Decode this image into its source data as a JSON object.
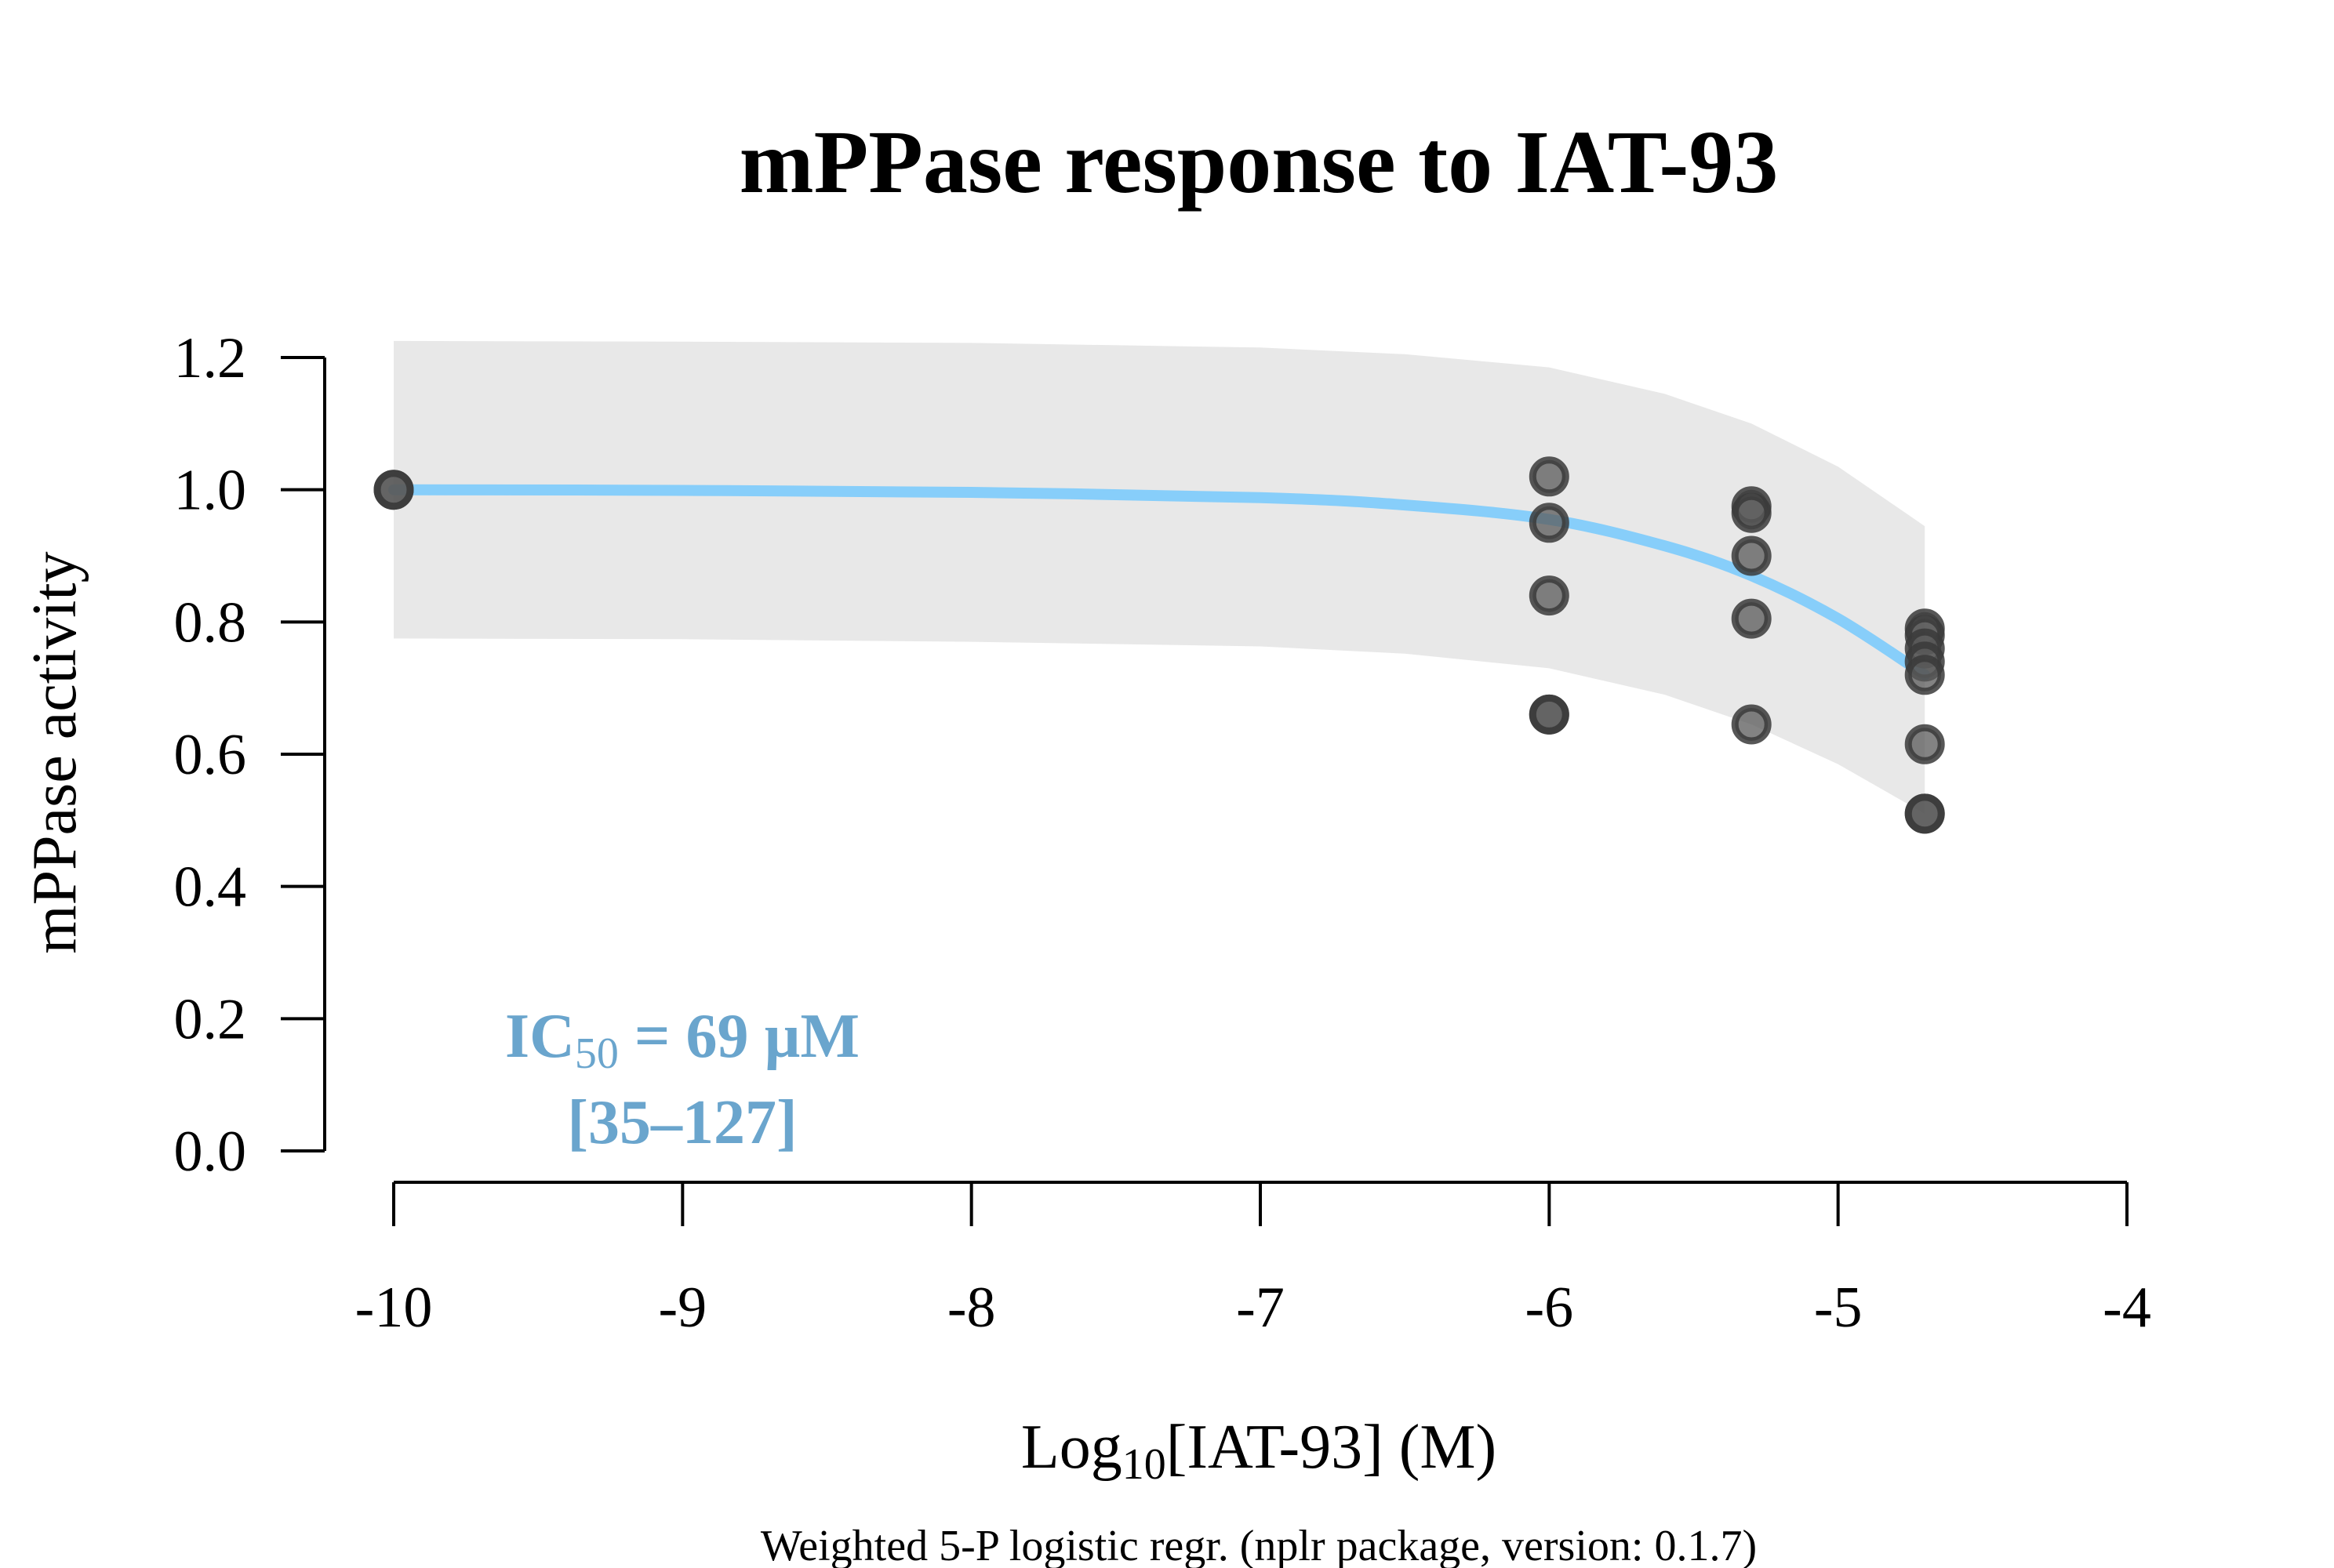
{
  "chart_data": {
    "type": "scatter",
    "title": "mPPase response to IAT-93",
    "xlabel": {
      "prefix": "Log",
      "subscript": "10",
      "suffix": "[IAT-93] (M)"
    },
    "ylabel": "mPPase activity",
    "footnote": "Weighted 5-P logistic regr. (nplr package, version: 0.1.7)",
    "xlim": [
      -10,
      -4
    ],
    "ylim": [
      0,
      1.2
    ],
    "x_ticks": [
      -10,
      -9,
      -8,
      -7,
      -6,
      -5,
      -4
    ],
    "x_tick_labels": [
      "-10",
      "-9",
      "-8",
      "-7",
      "-6",
      "-5",
      "-4"
    ],
    "y_ticks": [
      0,
      0.2,
      0.4,
      0.6,
      0.8,
      1.0,
      1.2
    ],
    "y_tick_labels": [
      "0.0",
      "0.2",
      "0.4",
      "0.6",
      "0.8",
      "1.0",
      "1.2"
    ],
    "grid": false,
    "legend": "none",
    "points": [
      {
        "x": -10,
        "y": 1.0
      },
      {
        "x": -10,
        "y": 1.0
      },
      {
        "x": -6,
        "y": 1.02
      },
      {
        "x": -6,
        "y": 0.95
      },
      {
        "x": -6,
        "y": 0.84
      },
      {
        "x": -6,
        "y": 0.66
      },
      {
        "x": -6,
        "y": 0.66
      },
      {
        "x": -5.3,
        "y": 0.975
      },
      {
        "x": -5.3,
        "y": 0.965
      },
      {
        "x": -5.3,
        "y": 0.9
      },
      {
        "x": -5.3,
        "y": 0.805
      },
      {
        "x": -5.3,
        "y": 0.645
      },
      {
        "x": -4.7,
        "y": 0.79
      },
      {
        "x": -4.7,
        "y": 0.78
      },
      {
        "x": -4.7,
        "y": 0.76
      },
      {
        "x": -4.7,
        "y": 0.74
      },
      {
        "x": -4.7,
        "y": 0.72
      },
      {
        "x": -4.7,
        "y": 0.615
      },
      {
        "x": -4.7,
        "y": 0.51
      },
      {
        "x": -4.7,
        "y": 0.51
      }
    ],
    "fit_curve": {
      "x": [
        -10,
        -9,
        -8,
        -7,
        -6.5,
        -6,
        -5.6,
        -5.3,
        -5,
        -4.7
      ],
      "y": [
        1.0,
        0.999,
        0.996,
        0.988,
        0.977,
        0.955,
        0.915,
        0.87,
        0.805,
        0.72
      ]
    },
    "confidence_band": {
      "x": [
        -10,
        -9,
        -8,
        -7,
        -6.5,
        -6,
        -5.6,
        -5.3,
        -5,
        -4.7
      ],
      "lower": [
        0.775,
        0.774,
        0.77,
        0.763,
        0.752,
        0.73,
        0.69,
        0.645,
        0.585,
        0.51
      ],
      "upper": [
        1.225,
        1.224,
        1.222,
        1.215,
        1.205,
        1.185,
        1.145,
        1.1,
        1.035,
        0.945
      ]
    },
    "annotation": {
      "line1_prefix": "IC",
      "line1_subscript": "50",
      "line1_suffix": " = 69 µM",
      "line2": "[35–127]"
    },
    "colors": {
      "curve": "#87cefa",
      "band": "#e8e8e8",
      "point_fill": "#5a5a5a",
      "point_stroke": "#3a3a3a",
      "annotation": "#6aa5cd",
      "axis": "#000000"
    }
  }
}
